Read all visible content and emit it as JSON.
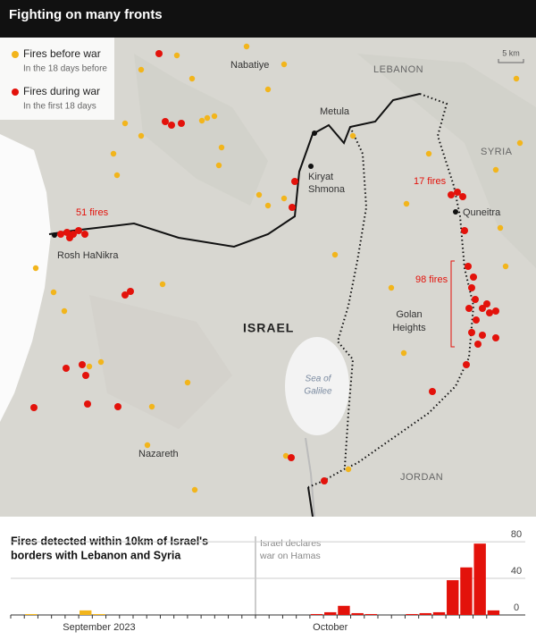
{
  "header": {
    "title": "Fighting on many fronts"
  },
  "map": {
    "legend": {
      "before_note": "In the 18 days before",
      "during_note": "In the first 18 days"
    },
    "places": {
      "nabatiye": "Nabatiye",
      "lebanon": "LEBANON",
      "metula": "Metula",
      "kiryat_shmona": [
        "Kiryat",
        "Shmona"
      ],
      "syria": "SYRIA",
      "quneitra": "Quneitra",
      "rosh_hanikra": "Rosh HaNikra",
      "israel": "ISRAEL",
      "golan": [
        "Golan",
        "Heights"
      ],
      "galilee": [
        "Sea of",
        "Galilee"
      ],
      "nazareth": "Nazareth",
      "jordan": "JORDAN"
    },
    "scale": "5 km",
    "annotations": {
      "west": "51 fires",
      "north_golan": "17 fires",
      "east_golan": "98 fires"
    }
  },
  "chart_data": {
    "type": "bar",
    "title": [
      "Fires detected within 10km of Israel's",
      "borders with Lebanon and Syria"
    ],
    "annotation": [
      "Israel declares",
      "war on Hamas"
    ],
    "categories": [
      null,
      null,
      null,
      null,
      null,
      null,
      "September 2023",
      null,
      null,
      null,
      null,
      null,
      null,
      null,
      null,
      null,
      null,
      null,
      null,
      null,
      null,
      null,
      null,
      "October",
      null,
      null,
      null,
      null,
      null,
      null,
      null,
      null,
      null,
      null,
      null,
      null
    ],
    "series": [
      {
        "name": "Fires before war",
        "color": "#f2b51c",
        "values": [
          0,
          1,
          0,
          0,
          0,
          5,
          1,
          0,
          0,
          0,
          0,
          0,
          0,
          0,
          0,
          0,
          0,
          0,
          null,
          null,
          null,
          null,
          null,
          null,
          null,
          null,
          null,
          null,
          null,
          null,
          null,
          null,
          null,
          null,
          null,
          null
        ]
      },
      {
        "name": "Fires during war",
        "color": "#e3120b",
        "values": [
          null,
          null,
          null,
          null,
          null,
          null,
          null,
          null,
          null,
          null,
          null,
          null,
          null,
          null,
          null,
          null,
          null,
          null,
          0,
          0,
          0,
          0,
          1,
          3,
          10,
          2,
          1,
          0,
          0,
          1,
          2,
          3,
          38,
          52,
          78,
          5
        ]
      }
    ],
    "ylim": [
      0,
      85
    ],
    "yticks": [
      0,
      40,
      80
    ],
    "grid": true
  }
}
